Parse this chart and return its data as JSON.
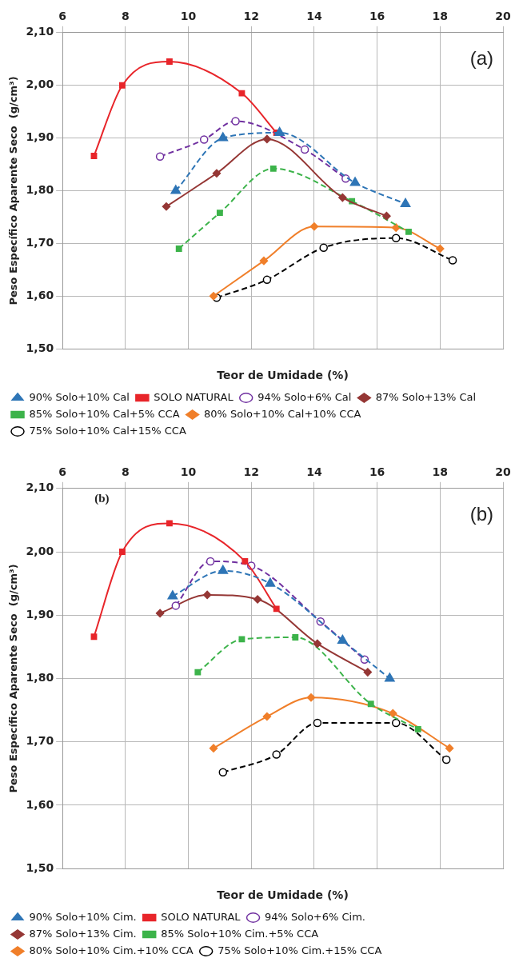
{
  "chart_data": [
    {
      "type": "line",
      "xlabel": "Teor de Umidade (%)",
      "ylabel": "Peso Específico Aparente Seco  (g/cm³)",
      "annotations": [
        "(a)"
      ],
      "xlim": [
        6,
        20
      ],
      "xticks": [
        6,
        8,
        10,
        12,
        14,
        16,
        18,
        20
      ],
      "ylim": [
        1.5,
        2.1
      ],
      "yticks": [
        {
          "value": 1.5,
          "label": "1,50"
        },
        {
          "value": 1.6,
          "label": "1,60"
        },
        {
          "value": 1.7,
          "label": "1,70"
        },
        {
          "value": 1.8,
          "label": "1,80"
        },
        {
          "value": 1.9,
          "label": "1,90"
        },
        {
          "value": 2.0,
          "label": "2,00"
        },
        {
          "value": 2.1,
          "label": "2,10"
        }
      ],
      "grid": true,
      "legend": "bottom",
      "series": [
        {
          "name": "SOLO NATURAL",
          "color": "#e8252a",
          "marker": "square",
          "line_style": "solid",
          "x": [
            7.0,
            7.9,
            9.4,
            11.7,
            12.8
          ],
          "values": [
            1.866,
            2.0,
            2.045,
            1.985,
            1.91
          ]
        },
        {
          "name": "94% Solo+6% Cal",
          "color": "#7030a0",
          "marker": "circle",
          "line_style": "dashed",
          "x": [
            9.1,
            10.5,
            11.5,
            13.7,
            15.0
          ],
          "values": [
            1.865,
            1.897,
            1.932,
            1.878,
            1.823
          ]
        },
        {
          "name": "90% Solo+10% Cal",
          "color": "#2e75b6",
          "marker": "triangle",
          "line_style": "dashed",
          "x": [
            9.6,
            11.1,
            12.9,
            15.3,
            16.9
          ],
          "values": [
            1.8,
            1.9,
            1.91,
            1.815,
            1.775
          ]
        },
        {
          "name": "87% Solo+13% Cal",
          "color": "#953735",
          "marker": "diamond",
          "line_style": "solid",
          "x": [
            9.3,
            10.9,
            12.5,
            14.9,
            16.3
          ],
          "values": [
            1.77,
            1.833,
            1.898,
            1.787,
            1.752
          ]
        },
        {
          "name": "85% Solo+10% Cal+5% CCA",
          "color": "#3cb34a",
          "marker": "square",
          "line_style": "dashed",
          "x": [
            9.7,
            11.0,
            12.7,
            15.2,
            17.0
          ],
          "values": [
            1.69,
            1.758,
            1.842,
            1.78,
            1.722
          ]
        },
        {
          "name": "80% Solo+10% Cal+10% CCA",
          "color": "#f07f2a",
          "marker": "diamond",
          "line_style": "solid",
          "x": [
            10.8,
            12.4,
            14.0,
            16.6,
            18.0
          ],
          "values": [
            1.6,
            1.667,
            1.732,
            1.73,
            1.69
          ]
        },
        {
          "name": "75% Solo+10% Cal+15% CCA",
          "color": "#000000",
          "marker": "circle",
          "line_style": "dashed",
          "x": [
            10.9,
            12.5,
            14.3,
            16.6,
            18.4
          ],
          "values": [
            1.597,
            1.631,
            1.692,
            1.71,
            1.668
          ]
        }
      ]
    },
    {
      "type": "line",
      "xlabel": "Teor de Umidade (%)",
      "ylabel": "Peso Específico Aparente Seco  (g/cm³)",
      "annotations": [
        "(b)",
        "(b)"
      ],
      "xlim": [
        6,
        20
      ],
      "xticks": [
        6,
        8,
        10,
        12,
        14,
        16,
        18,
        20
      ],
      "ylim": [
        1.5,
        2.1
      ],
      "yticks": [
        {
          "value": 1.5,
          "label": "1,50"
        },
        {
          "value": 1.6,
          "label": "1,60"
        },
        {
          "value": 1.7,
          "label": "1,70"
        },
        {
          "value": 1.8,
          "label": "1,80"
        },
        {
          "value": 1.9,
          "label": "1,90"
        },
        {
          "value": 2.0,
          "label": "2,00"
        },
        {
          "value": 2.1,
          "label": "2,10"
        }
      ],
      "grid": true,
      "legend": "bottom",
      "series": [
        {
          "name": "SOLO NATURAL",
          "color": "#e8252a",
          "marker": "square",
          "line_style": "solid",
          "x": [
            7.0,
            7.9,
            9.4,
            11.8,
            12.8
          ],
          "values": [
            1.866,
            2.0,
            2.045,
            1.985,
            1.91
          ]
        },
        {
          "name": "94% Solo+6% Cim.",
          "color": "#7030a0",
          "marker": "circle",
          "line_style": "dashed",
          "x": [
            9.6,
            10.7,
            12.0,
            14.2,
            15.6
          ],
          "values": [
            1.915,
            1.985,
            1.978,
            1.89,
            1.83
          ]
        },
        {
          "name": "90% Solo+10% Cim.",
          "color": "#2e75b6",
          "marker": "triangle",
          "line_style": "dashed",
          "x": [
            9.5,
            11.1,
            12.6,
            14.9,
            16.4
          ],
          "values": [
            1.93,
            1.97,
            1.95,
            1.86,
            1.8
          ]
        },
        {
          "name": "87% Solo+13% Cim.",
          "color": "#953735",
          "marker": "diamond",
          "line_style": "solid",
          "x": [
            9.1,
            10.6,
            12.2,
            14.1,
            15.7
          ],
          "values": [
            1.903,
            1.932,
            1.925,
            1.855,
            1.81
          ]
        },
        {
          "name": "85% Solo+10% Cim.+5% CCA",
          "color": "#3cb34a",
          "marker": "square",
          "line_style": "dashed",
          "x": [
            10.3,
            11.7,
            13.4,
            15.8,
            17.3
          ],
          "values": [
            1.81,
            1.862,
            1.865,
            1.76,
            1.72
          ]
        },
        {
          "name": "80% Solo+10% Cim.+10% CCA",
          "color": "#f07f2a",
          "marker": "diamond",
          "line_style": "solid",
          "x": [
            10.8,
            12.5,
            13.9,
            16.5,
            18.3
          ],
          "values": [
            1.69,
            1.74,
            1.77,
            1.745,
            1.69
          ]
        },
        {
          "name": "75% Solo+10% Cim.+15% CCA",
          "color": "#000000",
          "marker": "circle",
          "line_style": "dashed",
          "x": [
            11.1,
            12.8,
            14.1,
            16.6,
            18.2
          ],
          "values": [
            1.652,
            1.68,
            1.73,
            1.73,
            1.672
          ]
        }
      ]
    }
  ]
}
